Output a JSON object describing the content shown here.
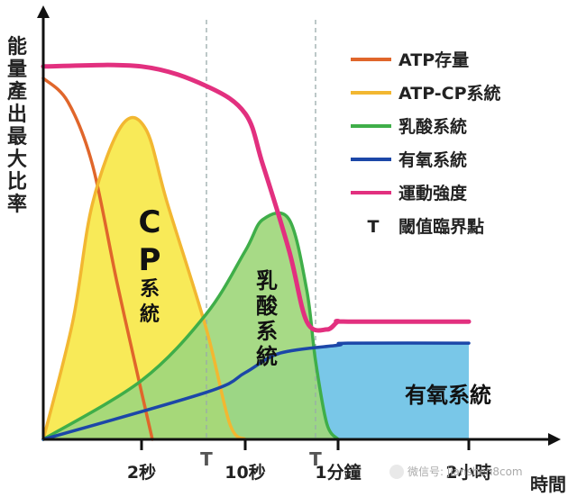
{
  "chart_data": {
    "type": "area",
    "ylabel": "能量產出最大比率",
    "xlabel": "時間",
    "x_ticks": [
      {
        "label": "2秒",
        "x": 2
      },
      {
        "label": "10秒",
        "x": 10
      },
      {
        "label": "1分鐘",
        "x": 60
      },
      {
        "label": "2小時",
        "x": 7200
      }
    ],
    "thresholds": [
      {
        "label": "T",
        "x": 5
      },
      {
        "label": "T",
        "x": 50
      }
    ],
    "axis_min_x": 0,
    "y_range": [
      0,
      100
    ],
    "series": [
      {
        "name": "ATP存量",
        "color": "#e0662b",
        "fill": null,
        "points": [
          [
            0,
            92
          ],
          [
            0.5,
            86
          ],
          [
            1,
            70
          ],
          [
            1.5,
            40
          ],
          [
            2,
            12
          ],
          [
            2.5,
            0
          ]
        ]
      },
      {
        "name": "ATP-CP系統",
        "color": "#f2b731",
        "fill": "#f7e84a",
        "points": [
          [
            0,
            0
          ],
          [
            0.6,
            30
          ],
          [
            1,
            60
          ],
          [
            1.6,
            80
          ],
          [
            2.2,
            79
          ],
          [
            3.2,
            60
          ],
          [
            5,
            28
          ],
          [
            8,
            4
          ],
          [
            10,
            0
          ]
        ]
      },
      {
        "name": "乳酸系統",
        "color": "#3fae49",
        "fill": "#9fd77c",
        "points": [
          [
            0,
            0
          ],
          [
            2,
            15
          ],
          [
            5,
            32
          ],
          [
            10,
            48
          ],
          [
            20,
            56
          ],
          [
            35,
            56
          ],
          [
            45,
            38
          ],
          [
            50,
            20
          ],
          [
            55,
            4
          ],
          [
            60,
            0
          ]
        ]
      },
      {
        "name": "有氧系統",
        "color": "#1c47a8",
        "fill": "#79c7e8",
        "points": [
          [
            0,
            0
          ],
          [
            5,
            12
          ],
          [
            10,
            17
          ],
          [
            30,
            22
          ],
          [
            60,
            24
          ],
          [
            600,
            24.5
          ],
          [
            7200,
            24.5
          ]
        ]
      },
      {
        "name": "運動強度",
        "color": "#e2307f",
        "fill": null,
        "points": [
          [
            0,
            95
          ],
          [
            2,
            95
          ],
          [
            5,
            90
          ],
          [
            10,
            83
          ],
          [
            20,
            70
          ],
          [
            35,
            48
          ],
          [
            45,
            30
          ],
          [
            55,
            28
          ],
          [
            60,
            30
          ],
          [
            600,
            30
          ],
          [
            7200,
            30
          ]
        ]
      }
    ],
    "legend": [
      {
        "label": "ATP存量",
        "color": "#e0662b"
      },
      {
        "label": "ATP-CP系統",
        "color": "#f2b731"
      },
      {
        "label": "乳酸系統",
        "color": "#3fae49"
      },
      {
        "label": "有氧系統",
        "color": "#1c47a8"
      },
      {
        "label": "運動強度",
        "color": "#e2307f"
      },
      {
        "label": "閾值臨界點",
        "symbol": "T"
      }
    ],
    "legend_position": "top-right",
    "area_labels": {
      "cp": [
        "C",
        "P",
        "系",
        "統"
      ],
      "lactic": [
        "乳",
        "酸",
        "系",
        "統"
      ],
      "aerobic": "有氧系統"
    }
  },
  "watermark": "微信号: jianshen8com"
}
